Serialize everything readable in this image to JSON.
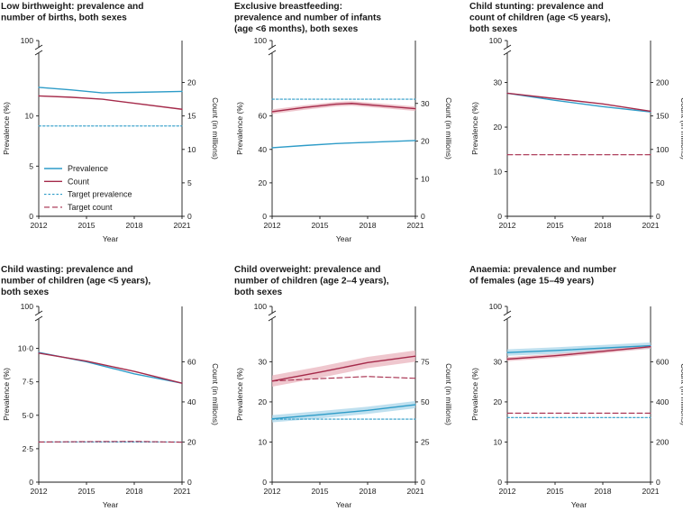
{
  "colors": {
    "prevalence": "#2e9cc8",
    "prevalence_band": "#a9d6ea",
    "count": "#a52a4a",
    "count_band": "#eab4bd",
    "axis": "#1a1a1a"
  },
  "legend": {
    "items": [
      {
        "label": "Prevalence",
        "style": "prevalence"
      },
      {
        "label": "Count",
        "style": "count"
      },
      {
        "label": "Target prevalence",
        "style": "target_prevalence"
      },
      {
        "label": "Target count",
        "style": "target_count"
      }
    ]
  },
  "chart_data": [
    {
      "type": "line",
      "id": "low-birthweight",
      "title_lines": [
        "Low birthweight: prevalence and",
        "number of births, both sexes"
      ],
      "xlabel": "Year",
      "ylabel": "Prevalence (%)",
      "y2label": "Count (in millions)",
      "x_ticks": [
        "2012",
        "2015",
        "2018",
        "2021"
      ],
      "xlim": [
        2012,
        2021
      ],
      "ylim": [
        0,
        15
      ],
      "y_ticks": [
        0,
        5,
        10
      ],
      "y_top_label": "100",
      "y2lim": [
        0,
        22.5
      ],
      "y2_ticks": [
        0,
        5,
        10,
        15,
        20
      ],
      "has_break": true,
      "legend": true,
      "series": [
        {
          "name": "Prevalence",
          "style": "prevalence",
          "axis": "left",
          "x": [
            2012,
            2014,
            2016,
            2018,
            2021
          ],
          "values": [
            12.85,
            12.6,
            12.3,
            12.35,
            12.45
          ]
        },
        {
          "name": "Count",
          "style": "count",
          "axis": "right",
          "x": [
            2012,
            2014,
            2016,
            2018,
            2021
          ],
          "values": [
            18.0,
            17.8,
            17.5,
            16.9,
            16.0
          ]
        },
        {
          "name": "Target prevalence",
          "style": "target_prevalence",
          "axis": "left",
          "x": [
            2012,
            2021
          ],
          "values": [
            9.0,
            9.0
          ]
        }
      ]
    },
    {
      "type": "line",
      "id": "exclusive-breastfeeding",
      "title_lines": [
        "Exclusive breastfeeding:",
        "prevalence and number of infants",
        "(age <6 months), both sexes"
      ],
      "xlabel": "Year",
      "ylabel": "Prevalence (%)",
      "y2label": "Count (in millions)",
      "x_ticks": [
        "2012",
        "2015",
        "2018",
        "2021"
      ],
      "xlim": [
        2012,
        2021
      ],
      "ylim": [
        0,
        90
      ],
      "y_ticks": [
        0,
        20,
        40,
        60
      ],
      "y_top_label": "100",
      "y2lim": [
        0,
        40
      ],
      "y2_ticks": [
        0,
        10,
        20,
        30
      ],
      "has_break": true,
      "legend": false,
      "series": [
        {
          "name": "Prevalence",
          "style": "prevalence",
          "axis": "left",
          "x": [
            2012,
            2014,
            2016,
            2018,
            2021
          ],
          "values": [
            41,
            42.3,
            43.5,
            44.2,
            45.3
          ]
        },
        {
          "name": "Count",
          "style": "count",
          "axis": "right",
          "band": 0.6,
          "x": [
            2012,
            2014,
            2016,
            2017,
            2019,
            2021
          ],
          "values": [
            27.8,
            28.9,
            29.8,
            30.0,
            29.3,
            28.6
          ]
        },
        {
          "name": "Target prevalence",
          "style": "target_prevalence",
          "axis": "left",
          "x": [
            2012,
            2021
          ],
          "values": [
            70,
            70
          ]
        }
      ]
    },
    {
      "type": "line",
      "id": "child-stunting",
      "title_lines": [
        "Child stunting: prevalence and",
        "count of children (age <5 years),",
        "both sexes"
      ],
      "xlabel": "Year",
      "ylabel": "Prevalence (%)",
      "y2label": "Count (in millions)",
      "x_ticks": [
        "2012",
        "2015",
        "2018",
        "2021"
      ],
      "xlim": [
        2012,
        2021
      ],
      "ylim": [
        0,
        33.75
      ],
      "y_ticks": [
        0,
        10,
        20,
        30
      ],
      "y_top_label": "100",
      "y2lim": [
        0,
        225
      ],
      "y2_ticks": [
        0,
        50,
        100,
        150,
        200
      ],
      "has_break": true,
      "legend": false,
      "series": [
        {
          "name": "Prevalence",
          "style": "prevalence",
          "axis": "left",
          "x": [
            2012,
            2015,
            2018,
            2021
          ],
          "values": [
            27.6,
            26.0,
            24.6,
            23.4
          ]
        },
        {
          "name": "Count",
          "style": "count",
          "axis": "right",
          "x": [
            2012,
            2015,
            2018,
            2021
          ],
          "values": [
            184,
            176,
            168,
            157
          ]
        },
        {
          "name": "Target count",
          "style": "target_count",
          "axis": "right",
          "x": [
            2012,
            2021
          ],
          "values": [
            92,
            92
          ]
        }
      ]
    },
    {
      "type": "line",
      "id": "child-wasting",
      "title_lines": [
        "Child wasting: prevalence and",
        "number of children (age <5 years),",
        "both sexes"
      ],
      "xlabel": "Year",
      "ylabel": "Prevalence (%)",
      "y2label": "Count (in millions)",
      "x_ticks": [
        "2012",
        "2015",
        "2018",
        "2021"
      ],
      "xlim": [
        2012,
        2021
      ],
      "ylim": [
        0,
        11.25
      ],
      "y_ticks": [
        0,
        2.5,
        5.0,
        7.5,
        10.0
      ],
      "y_tick_labels": [
        "0",
        "2·5",
        "5·0",
        "7·5",
        "10·0"
      ],
      "y_top_label": "100",
      "y2lim": [
        0,
        75
      ],
      "y2_ticks": [
        0,
        20,
        40,
        60
      ],
      "has_break": true,
      "legend": false,
      "series": [
        {
          "name": "Prevalence",
          "style": "prevalence",
          "axis": "left",
          "x": [
            2012,
            2015,
            2018,
            2021
          ],
          "values": [
            9.7,
            9.0,
            8.1,
            7.4
          ]
        },
        {
          "name": "Count",
          "style": "count",
          "axis": "right",
          "x": [
            2012,
            2015,
            2018,
            2021
          ],
          "values": [
            64.3,
            60.3,
            55.2,
            49.3
          ]
        },
        {
          "name": "Target prevalence",
          "style": "target_prevalence",
          "axis": "left",
          "x": [
            2012,
            2021
          ],
          "values": [
            3.0,
            3.0
          ]
        },
        {
          "name": "Target count",
          "style": "target_count",
          "axis": "right",
          "x": [
            2012,
            2015,
            2018,
            2021
          ],
          "values": [
            20.0,
            20.2,
            20.3,
            19.9
          ]
        }
      ]
    },
    {
      "type": "line",
      "id": "child-overweight",
      "title_lines": [
        "Child overweight: prevalence and",
        "number of children (age 2–4 years),",
        "both sexes"
      ],
      "xlabel": "Year",
      "ylabel": "Prevalence (%)",
      "y2label": "Count (in millions)",
      "x_ticks": [
        "2012",
        "2015",
        "2018",
        "2021"
      ],
      "xlim": [
        2012,
        2021
      ],
      "ylim": [
        0,
        37.5
      ],
      "y_ticks": [
        0,
        10,
        20,
        30
      ],
      "y_top_label": "100",
      "y2lim": [
        0,
        93.75
      ],
      "y2_ticks": [
        0,
        25,
        50,
        75
      ],
      "has_break": true,
      "legend": false,
      "series": [
        {
          "name": "Prevalence",
          "style": "prevalence",
          "axis": "left",
          "band": 0.9,
          "x": [
            2012,
            2015,
            2018,
            2021
          ],
          "values": [
            15.8,
            16.8,
            17.9,
            19.3
          ]
        },
        {
          "name": "Count",
          "style": "count",
          "axis": "right",
          "band": 3.5,
          "x": [
            2012,
            2015,
            2018,
            2021
          ],
          "values": [
            63.0,
            68.5,
            74.5,
            78.5
          ]
        },
        {
          "name": "Target prevalence",
          "style": "target_prevalence",
          "axis": "left",
          "x": [
            2012,
            2021
          ],
          "values": [
            15.7,
            15.7
          ]
        },
        {
          "name": "Target count",
          "style": "target_count",
          "axis": "right",
          "x": [
            2012,
            2015,
            2018,
            2021
          ],
          "values": [
            63.0,
            64.5,
            65.8,
            64.7
          ]
        }
      ]
    },
    {
      "type": "line",
      "id": "anaemia",
      "title_lines": [
        "Anaemia: prevalence and number",
        "of females (age 15–49 years)"
      ],
      "xlabel": "Year",
      "ylabel": "Prevalence (%)",
      "y2label": "Count (in millions)",
      "x_ticks": [
        "2012",
        "2015",
        "2018",
        "2021"
      ],
      "xlim": [
        2012,
        2021
      ],
      "ylim": [
        0,
        37.5
      ],
      "y_ticks": [
        0,
        10,
        20,
        30
      ],
      "y_top_label": "100",
      "y2lim": [
        0,
        750
      ],
      "y2_ticks": [
        0,
        200,
        400,
        600
      ],
      "has_break": true,
      "legend": false,
      "series": [
        {
          "name": "Prevalence",
          "style": "prevalence",
          "axis": "left",
          "band": 0.8,
          "x": [
            2012,
            2015,
            2018,
            2021
          ],
          "values": [
            32.3,
            32.8,
            33.4,
            34.0
          ]
        },
        {
          "name": "Count",
          "style": "count",
          "axis": "right",
          "band": 10,
          "x": [
            2012,
            2015,
            2018,
            2021
          ],
          "values": [
            613,
            630,
            652,
            675
          ]
        },
        {
          "name": "Target prevalence",
          "style": "target_prevalence",
          "axis": "left",
          "x": [
            2012,
            2021
          ],
          "values": [
            16.1,
            16.1
          ]
        },
        {
          "name": "Target count",
          "style": "target_count",
          "axis": "right",
          "x": [
            2012,
            2021
          ],
          "values": [
            344,
            344
          ]
        }
      ]
    }
  ]
}
